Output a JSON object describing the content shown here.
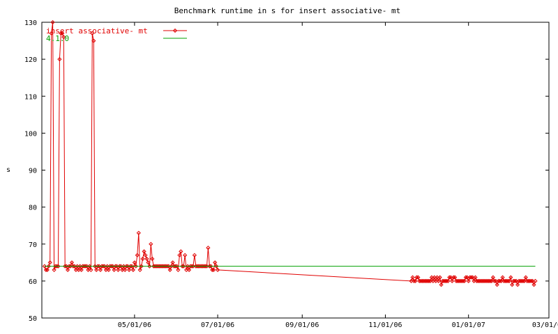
{
  "chart_data": {
    "type": "line",
    "title": "Benchmark runtime in s for insert associative-  mt",
    "ylabel": "s",
    "xlabel": "",
    "ylim": [
      50,
      130
    ],
    "xlim": [
      "2006-02-22",
      "2007-03-01"
    ],
    "yticks": [
      50,
      60,
      70,
      80,
      90,
      100,
      110,
      120,
      130
    ],
    "xticks": [
      {
        "date": "2006-05-01",
        "label": "05/01/06"
      },
      {
        "date": "2006-07-01",
        "label": "07/01/06"
      },
      {
        "date": "2006-09-01",
        "label": "09/01/06"
      },
      {
        "date": "2006-11-01",
        "label": "11/01/06"
      },
      {
        "date": "2007-01-01",
        "label": "01/01/07"
      },
      {
        "date": "2007-03-01",
        "label": "03/01/07"
      }
    ],
    "grid": false,
    "legend_position": "top-left",
    "series": [
      {
        "name": "insert associative-  mt",
        "color": "#e00000",
        "marker": "diamond",
        "points": [
          [
            "2006-02-24",
            64
          ],
          [
            "2006-02-25",
            63
          ],
          [
            "2006-02-26",
            63
          ],
          [
            "2006-02-27",
            64
          ],
          [
            "2006-02-28",
            65
          ],
          [
            "2006-03-01",
            127
          ],
          [
            "2006-03-02",
            130
          ],
          [
            "2006-03-03",
            63
          ],
          [
            "2006-03-04",
            64
          ],
          [
            "2006-03-05",
            64
          ],
          [
            "2006-03-06",
            64
          ],
          [
            "2006-03-07",
            120
          ],
          [
            "2006-03-08",
            127
          ],
          [
            "2006-03-09",
            127
          ],
          [
            "2006-03-10",
            126
          ],
          [
            "2006-03-11",
            64
          ],
          [
            "2006-03-12",
            64
          ],
          [
            "2006-03-13",
            63
          ],
          [
            "2006-03-14",
            64
          ],
          [
            "2006-03-15",
            64
          ],
          [
            "2006-03-16",
            65
          ],
          [
            "2006-03-17",
            64
          ],
          [
            "2006-03-18",
            64
          ],
          [
            "2006-03-19",
            63
          ],
          [
            "2006-03-20",
            64
          ],
          [
            "2006-03-21",
            63
          ],
          [
            "2006-03-22",
            64
          ],
          [
            "2006-03-23",
            63
          ],
          [
            "2006-03-24",
            64
          ],
          [
            "2006-03-25",
            64
          ],
          [
            "2006-03-26",
            64
          ],
          [
            "2006-03-27",
            64
          ],
          [
            "2006-03-28",
            63
          ],
          [
            "2006-03-29",
            64
          ],
          [
            "2006-03-30",
            63
          ],
          [
            "2006-03-31",
            127
          ],
          [
            "2006-04-01",
            125
          ],
          [
            "2006-04-02",
            64
          ],
          [
            "2006-04-03",
            63
          ],
          [
            "2006-04-04",
            64
          ],
          [
            "2006-04-05",
            64
          ],
          [
            "2006-04-06",
            63
          ],
          [
            "2006-04-07",
            64
          ],
          [
            "2006-04-08",
            64
          ],
          [
            "2006-04-09",
            64
          ],
          [
            "2006-04-10",
            63
          ],
          [
            "2006-04-11",
            64
          ],
          [
            "2006-04-12",
            63
          ],
          [
            "2006-04-13",
            64
          ],
          [
            "2006-04-14",
            64
          ],
          [
            "2006-04-15",
            64
          ],
          [
            "2006-04-16",
            63
          ],
          [
            "2006-04-17",
            64
          ],
          [
            "2006-04-18",
            64
          ],
          [
            "2006-04-19",
            63
          ],
          [
            "2006-04-20",
            64
          ],
          [
            "2006-04-21",
            64
          ],
          [
            "2006-04-22",
            63
          ],
          [
            "2006-04-23",
            64
          ],
          [
            "2006-04-24",
            63
          ],
          [
            "2006-04-25",
            64
          ],
          [
            "2006-04-26",
            64
          ],
          [
            "2006-04-27",
            63
          ],
          [
            "2006-04-28",
            64
          ],
          [
            "2006-04-29",
            64
          ],
          [
            "2006-04-30",
            63
          ],
          [
            "2006-05-01",
            65
          ],
          [
            "2006-05-02",
            64
          ],
          [
            "2006-05-03",
            67
          ],
          [
            "2006-05-04",
            73
          ],
          [
            "2006-05-05",
            63
          ],
          [
            "2006-05-06",
            64
          ],
          [
            "2006-05-07",
            66
          ],
          [
            "2006-05-08",
            68
          ],
          [
            "2006-05-09",
            67
          ],
          [
            "2006-05-10",
            66
          ],
          [
            "2006-05-11",
            65
          ],
          [
            "2006-05-12",
            64
          ],
          [
            "2006-05-13",
            70
          ],
          [
            "2006-05-14",
            66
          ],
          [
            "2006-05-15",
            64
          ],
          [
            "2006-05-16",
            64
          ],
          [
            "2006-05-17",
            64
          ],
          [
            "2006-05-18",
            64
          ],
          [
            "2006-05-19",
            64
          ],
          [
            "2006-05-20",
            64
          ],
          [
            "2006-05-21",
            64
          ],
          [
            "2006-05-22",
            64
          ],
          [
            "2006-05-23",
            64
          ],
          [
            "2006-05-24",
            64
          ],
          [
            "2006-05-25",
            64
          ],
          [
            "2006-05-26",
            64
          ],
          [
            "2006-05-27",
            63
          ],
          [
            "2006-05-28",
            64
          ],
          [
            "2006-05-29",
            65
          ],
          [
            "2006-05-30",
            64
          ],
          [
            "2006-05-31",
            64
          ],
          [
            "2006-06-01",
            64
          ],
          [
            "2006-06-02",
            63
          ],
          [
            "2006-06-03",
            67
          ],
          [
            "2006-06-04",
            68
          ],
          [
            "2006-06-05",
            64
          ],
          [
            "2006-06-06",
            64
          ],
          [
            "2006-06-07",
            67
          ],
          [
            "2006-06-08",
            63
          ],
          [
            "2006-06-09",
            64
          ],
          [
            "2006-06-10",
            63
          ],
          [
            "2006-06-11",
            64
          ],
          [
            "2006-06-12",
            64
          ],
          [
            "2006-06-13",
            64
          ],
          [
            "2006-06-14",
            67
          ],
          [
            "2006-06-15",
            64
          ],
          [
            "2006-06-16",
            64
          ],
          [
            "2006-06-17",
            64
          ],
          [
            "2006-06-18",
            64
          ],
          [
            "2006-06-19",
            64
          ],
          [
            "2006-06-20",
            64
          ],
          [
            "2006-06-21",
            64
          ],
          [
            "2006-06-22",
            64
          ],
          [
            "2006-06-23",
            64
          ],
          [
            "2006-06-24",
            69
          ],
          [
            "2006-06-25",
            64
          ],
          [
            "2006-06-26",
            64
          ],
          [
            "2006-06-27",
            63
          ],
          [
            "2006-06-28",
            63
          ],
          [
            "2006-06-29",
            65
          ],
          [
            "2006-06-30",
            64
          ],
          [
            "2006-07-01",
            63
          ],
          [
            "2006-11-20",
            60
          ],
          [
            "2006-11-21",
            61
          ],
          [
            "2006-11-22",
            60
          ],
          [
            "2006-11-23",
            60
          ],
          [
            "2006-11-24",
            61
          ],
          [
            "2006-11-25",
            61
          ],
          [
            "2006-11-26",
            60
          ],
          [
            "2006-11-27",
            60
          ],
          [
            "2006-11-28",
            60
          ],
          [
            "2006-11-29",
            60
          ],
          [
            "2006-11-30",
            60
          ],
          [
            "2006-12-01",
            60
          ],
          [
            "2006-12-02",
            60
          ],
          [
            "2006-12-03",
            60
          ],
          [
            "2006-12-04",
            60
          ],
          [
            "2006-12-05",
            61
          ],
          [
            "2006-12-06",
            60
          ],
          [
            "2006-12-07",
            61
          ],
          [
            "2006-12-08",
            60
          ],
          [
            "2006-12-09",
            61
          ],
          [
            "2006-12-10",
            60
          ],
          [
            "2006-12-11",
            61
          ],
          [
            "2006-12-12",
            59
          ],
          [
            "2006-12-13",
            60
          ],
          [
            "2006-12-14",
            60
          ],
          [
            "2006-12-15",
            60
          ],
          [
            "2006-12-16",
            60
          ],
          [
            "2006-12-17",
            60
          ],
          [
            "2006-12-18",
            61
          ],
          [
            "2006-12-19",
            61
          ],
          [
            "2006-12-20",
            60
          ],
          [
            "2006-12-21",
            61
          ],
          [
            "2006-12-22",
            61
          ],
          [
            "2006-12-23",
            60
          ],
          [
            "2006-12-24",
            60
          ],
          [
            "2006-12-25",
            60
          ],
          [
            "2006-12-26",
            60
          ],
          [
            "2006-12-27",
            60
          ],
          [
            "2006-12-28",
            60
          ],
          [
            "2006-12-29",
            60
          ],
          [
            "2006-12-30",
            61
          ],
          [
            "2006-12-31",
            61
          ],
          [
            "2007-01-01",
            60
          ],
          [
            "2007-01-02",
            61
          ],
          [
            "2007-01-03",
            61
          ],
          [
            "2007-01-04",
            61
          ],
          [
            "2007-01-05",
            60
          ],
          [
            "2007-01-06",
            61
          ],
          [
            "2007-01-07",
            60
          ],
          [
            "2007-01-08",
            60
          ],
          [
            "2007-01-09",
            60
          ],
          [
            "2007-01-10",
            60
          ],
          [
            "2007-01-11",
            60
          ],
          [
            "2007-01-12",
            60
          ],
          [
            "2007-01-13",
            60
          ],
          [
            "2007-01-14",
            60
          ],
          [
            "2007-01-15",
            60
          ],
          [
            "2007-01-16",
            60
          ],
          [
            "2007-01-17",
            60
          ],
          [
            "2007-01-18",
            60
          ],
          [
            "2007-01-19",
            61
          ],
          [
            "2007-01-20",
            60
          ],
          [
            "2007-01-21",
            60
          ],
          [
            "2007-01-22",
            59
          ],
          [
            "2007-01-23",
            60
          ],
          [
            "2007-01-24",
            60
          ],
          [
            "2007-01-25",
            60
          ],
          [
            "2007-01-26",
            61
          ],
          [
            "2007-01-27",
            60
          ],
          [
            "2007-01-28",
            60
          ],
          [
            "2007-01-29",
            60
          ],
          [
            "2007-01-30",
            60
          ],
          [
            "2007-01-31",
            60
          ],
          [
            "2007-02-01",
            61
          ],
          [
            "2007-02-02",
            59
          ],
          [
            "2007-02-03",
            60
          ],
          [
            "2007-02-04",
            60
          ],
          [
            "2007-02-05",
            60
          ],
          [
            "2007-02-06",
            59
          ],
          [
            "2007-02-07",
            60
          ],
          [
            "2007-02-08",
            60
          ],
          [
            "2007-02-09",
            60
          ],
          [
            "2007-02-10",
            60
          ],
          [
            "2007-02-11",
            60
          ],
          [
            "2007-02-12",
            61
          ],
          [
            "2007-02-13",
            60
          ],
          [
            "2007-02-14",
            60
          ],
          [
            "2007-02-15",
            60
          ],
          [
            "2007-02-16",
            60
          ],
          [
            "2007-02-17",
            60
          ],
          [
            "2007-02-18",
            59
          ],
          [
            "2007-02-19",
            60
          ]
        ]
      },
      {
        "name": "4.1.0",
        "color": "#00a000",
        "marker": "none",
        "points": [
          [
            "2006-02-24",
            64
          ],
          [
            "2007-02-19",
            64
          ]
        ]
      }
    ]
  }
}
